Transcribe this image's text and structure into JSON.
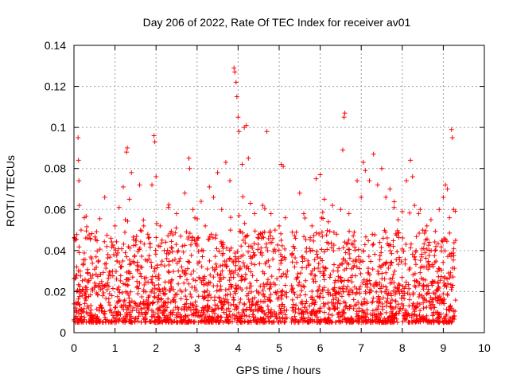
{
  "chart_data": {
    "type": "scatter",
    "title": "Day 206 of 2022, Rate Of TEC Index for receiver av01",
    "xlabel": "GPS time / hours",
    "ylabel": "ROTI / TECUs",
    "xlim": [
      0,
      10
    ],
    "ylim": [
      0,
      0.14
    ],
    "x_ticks": [
      "0",
      "1",
      "2",
      "3",
      "4",
      "5",
      "6",
      "7",
      "8",
      "9",
      "10"
    ],
    "y_ticks": [
      "0",
      "0.02",
      "0.04",
      "0.06",
      "0.08",
      "0.1",
      "0.12",
      "0.14"
    ],
    "grid": true,
    "marker": "+",
    "series_color": "#ff0000",
    "series": [
      {
        "name": "ROTI",
        "points": [
          [
            0.0,
            0.014
          ],
          [
            0.02,
            0.046
          ],
          [
            0.04,
            0.012
          ],
          [
            0.05,
            0.008
          ],
          [
            0.07,
            0.02
          ],
          [
            0.1,
            0.095
          ],
          [
            0.11,
            0.084
          ],
          [
            0.12,
            0.074
          ],
          [
            0.13,
            0.062
          ],
          [
            0.15,
            0.03
          ],
          [
            0.2,
            0.018
          ],
          [
            0.25,
            0.056
          ],
          [
            0.3,
            0.01
          ],
          [
            0.35,
            0.012
          ],
          [
            0.4,
            0.028
          ],
          [
            0.5,
            0.022
          ],
          [
            0.6,
            0.035
          ],
          [
            0.7,
            0.018
          ],
          [
            0.75,
            0.066
          ],
          [
            0.8,
            0.042
          ],
          [
            0.85,
            0.028
          ],
          [
            0.9,
            0.046
          ],
          [
            1.0,
            0.052
          ],
          [
            1.1,
            0.061
          ],
          [
            1.15,
            0.032
          ],
          [
            1.2,
            0.071
          ],
          [
            1.25,
            0.055
          ],
          [
            1.28,
            0.088
          ],
          [
            1.3,
            0.09
          ],
          [
            1.35,
            0.065
          ],
          [
            1.4,
            0.078
          ],
          [
            1.5,
            0.045
          ],
          [
            1.6,
            0.072
          ],
          [
            1.7,
            0.052
          ],
          [
            1.8,
            0.048
          ],
          [
            1.9,
            0.072
          ],
          [
            1.95,
            0.096
          ],
          [
            1.97,
            0.093
          ],
          [
            2.0,
            0.076
          ],
          [
            2.1,
            0.052
          ],
          [
            2.2,
            0.04
          ],
          [
            2.3,
            0.061
          ],
          [
            2.4,
            0.035
          ],
          [
            2.5,
            0.058
          ],
          [
            2.6,
            0.047
          ],
          [
            2.7,
            0.068
          ],
          [
            2.8,
            0.085
          ],
          [
            2.82,
            0.08
          ],
          [
            2.9,
            0.06
          ],
          [
            3.0,
            0.045
          ],
          [
            3.1,
            0.064
          ],
          [
            3.2,
            0.052
          ],
          [
            3.3,
            0.071
          ],
          [
            3.4,
            0.066
          ],
          [
            3.5,
            0.078
          ],
          [
            3.6,
            0.06
          ],
          [
            3.7,
            0.083
          ],
          [
            3.8,
            0.074
          ],
          [
            3.9,
            0.129
          ],
          [
            3.92,
            0.127
          ],
          [
            3.95,
            0.122
          ],
          [
            3.97,
            0.115
          ],
          [
            4.0,
            0.105
          ],
          [
            4.02,
            0.098
          ],
          [
            4.1,
            0.082
          ],
          [
            4.15,
            0.1
          ],
          [
            4.2,
            0.101
          ],
          [
            4.25,
            0.085
          ],
          [
            4.3,
            0.063
          ],
          [
            4.4,
            0.058
          ],
          [
            4.5,
            0.046
          ],
          [
            4.6,
            0.062
          ],
          [
            4.7,
            0.098
          ],
          [
            4.8,
            0.058
          ],
          [
            4.9,
            0.05
          ],
          [
            5.0,
            0.052
          ],
          [
            5.05,
            0.082
          ],
          [
            5.1,
            0.081
          ],
          [
            5.15,
            0.056
          ],
          [
            5.2,
            0.03
          ],
          [
            5.35,
            0.042
          ],
          [
            5.4,
            0.046
          ],
          [
            5.5,
            0.068
          ],
          [
            5.6,
            0.058
          ],
          [
            5.7,
            0.035
          ],
          [
            5.8,
            0.052
          ],
          [
            5.9,
            0.075
          ],
          [
            6.0,
            0.077
          ],
          [
            6.1,
            0.065
          ],
          [
            6.2,
            0.054
          ],
          [
            6.3,
            0.062
          ],
          [
            6.4,
            0.048
          ],
          [
            6.5,
            0.06
          ],
          [
            6.55,
            0.089
          ],
          [
            6.58,
            0.105
          ],
          [
            6.6,
            0.107
          ],
          [
            6.7,
            0.058
          ],
          [
            6.8,
            0.043
          ],
          [
            6.9,
            0.074
          ],
          [
            7.0,
            0.066
          ],
          [
            7.05,
            0.083
          ],
          [
            7.1,
            0.079
          ],
          [
            7.2,
            0.074
          ],
          [
            7.3,
            0.087
          ],
          [
            7.4,
            0.072
          ],
          [
            7.5,
            0.08
          ],
          [
            7.6,
            0.066
          ],
          [
            7.7,
            0.07
          ],
          [
            7.8,
            0.061
          ],
          [
            7.9,
            0.055
          ],
          [
            8.0,
            0.059
          ],
          [
            8.1,
            0.074
          ],
          [
            8.2,
            0.084
          ],
          [
            8.25,
            0.076
          ],
          [
            8.3,
            0.062
          ],
          [
            8.4,
            0.058
          ],
          [
            8.5,
            0.05
          ],
          [
            8.6,
            0.052
          ],
          [
            8.7,
            0.055
          ],
          [
            8.8,
            0.04
          ],
          [
            8.9,
            0.06
          ],
          [
            9.0,
            0.066
          ],
          [
            9.05,
            0.072
          ],
          [
            9.1,
            0.07
          ],
          [
            9.15,
            0.056
          ],
          [
            9.2,
            0.099
          ],
          [
            9.22,
            0.095
          ],
          [
            9.25,
            0.06
          ],
          [
            9.3,
            0.045
          ]
        ]
      }
    ],
    "background_density": {
      "description": "dense cloud of ROTI samples between 0 and ~0.045 TECU over 0-5.2 h and 5.3-9.3 h (gap near 5.2-5.3 h)",
      "segments": [
        [
          0.0,
          5.2
        ],
        [
          5.3,
          9.3
        ]
      ],
      "typical_max": 0.045,
      "baseline": 0.005
    }
  }
}
